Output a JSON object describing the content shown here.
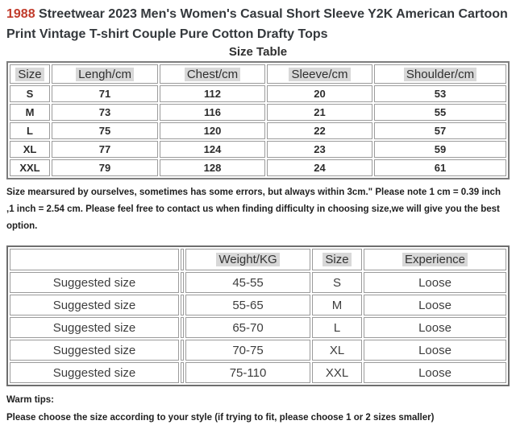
{
  "title": {
    "highlight": "1988",
    "rest": " Streetwear 2023 Men's Women's Casual Short Sleeve Y2K American Cartoon Print Vintage T-shirt Couple Pure Cotton Drafty Tops"
  },
  "subtitle": "Size Table",
  "size_table": {
    "headers": [
      "Size",
      "Lengh/cm",
      "Chest/cm",
      "Sleeve/cm",
      "Shoulder/cm"
    ],
    "rows": [
      [
        "S",
        "71",
        "112",
        "20",
        "53"
      ],
      [
        "M",
        "73",
        "116",
        "21",
        "55"
      ],
      [
        "L",
        "75",
        "120",
        "22",
        "57"
      ],
      [
        "XL",
        "77",
        "124",
        "23",
        "59"
      ],
      [
        "XXL",
        "79",
        "128",
        "24",
        "61"
      ]
    ]
  },
  "note": "Size mearsured by ourselves, sometimes has some errors, but always within 3cm.\" Please note 1 cm = 0.39 inch ,1 inch = 2.54 cm. Please feel free to contact us when finding difficulty in choosing size,we will give you the best option.",
  "suggest_table": {
    "headers": [
      "",
      "Weight/KG",
      "Size",
      "Experience"
    ],
    "rows": [
      [
        "Suggested size",
        "45-55",
        "S",
        "Loose"
      ],
      [
        "Suggested size",
        "55-65",
        "M",
        "Loose"
      ],
      [
        "Suggested size",
        "65-70",
        "L",
        "Loose"
      ],
      [
        "Suggested size",
        "70-75",
        "XL",
        "Loose"
      ],
      [
        "Suggested size",
        "75-110",
        "XXL",
        "Loose"
      ]
    ]
  },
  "warm_tips": {
    "label": "Warm tips:",
    "text": "Please choose the size according to your style (if trying to fit, please choose 1 or 2 sizes smaller)"
  },
  "colors": {
    "accent_red": "#c13b2b",
    "header_highlight": "#d8d8d8",
    "border_gray": "#9b9b9b",
    "outer_border": "#7d7d7d",
    "text_dark": "#2c2c2c"
  }
}
